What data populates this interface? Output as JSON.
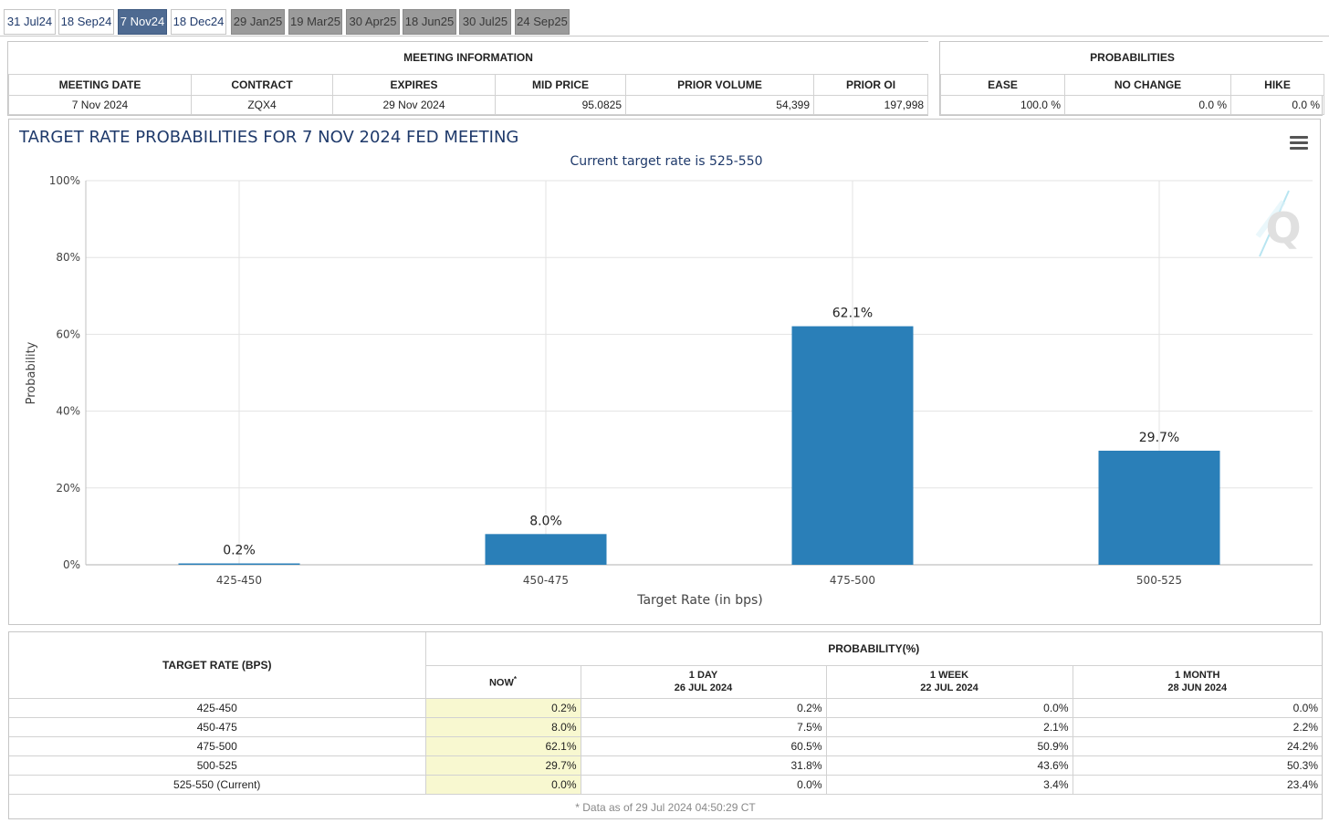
{
  "tabs": [
    {
      "label": "31 Jul24",
      "state": "normal"
    },
    {
      "label": "18 Sep24",
      "state": "normal"
    },
    {
      "label": "7 Nov24",
      "state": "active"
    },
    {
      "label": "18 Dec24",
      "state": "normal"
    },
    {
      "label": "29 Jan25",
      "state": "inactive"
    },
    {
      "label": "19 Mar25",
      "state": "inactive"
    },
    {
      "label": "30 Apr25",
      "state": "inactive"
    },
    {
      "label": "18 Jun25",
      "state": "inactive"
    },
    {
      "label": "30 Jul25",
      "state": "inactive"
    },
    {
      "label": "24 Sep25",
      "state": "inactive"
    }
  ],
  "meeting_info": {
    "title": "MEETING INFORMATION",
    "headers": [
      "MEETING DATE",
      "CONTRACT",
      "EXPIRES",
      "MID PRICE",
      "PRIOR VOLUME",
      "PRIOR OI"
    ],
    "values": [
      "7 Nov 2024",
      "ZQX4",
      "29 Nov 2024",
      "95.0825",
      "54,399",
      "197,998"
    ]
  },
  "probabilities": {
    "title": "PROBABILITIES",
    "headers": [
      "EASE",
      "NO CHANGE",
      "HIKE"
    ],
    "values": [
      "100.0 %",
      "0.0 %",
      "0.0 %"
    ]
  },
  "chart_data": {
    "type": "bar",
    "title": "TARGET RATE PROBABILITIES FOR 7 NOV 2024 FED MEETING",
    "subtitle": "Current target rate is 525-550",
    "xlabel": "Target Rate (in bps)",
    "ylabel": "Probability",
    "categories": [
      "425-450",
      "450-475",
      "475-500",
      "500-525"
    ],
    "values": [
      0.2,
      8.0,
      62.1,
      29.7
    ],
    "data_labels": [
      "0.2%",
      "8.0%",
      "62.1%",
      "29.7%"
    ],
    "ylim": [
      0,
      100
    ],
    "yticks": [
      "0%",
      "20%",
      "40%",
      "60%",
      "80%",
      "100%"
    ],
    "grid": true,
    "bar_color": "#2a7fb8"
  },
  "prob_table": {
    "col_target": "TARGET RATE (BPS)",
    "col_prob": "PROBABILITY(%)",
    "now": {
      "label": "NOW",
      "mark": "*"
    },
    "day": {
      "line1": "1 DAY",
      "line2": "26 JUL 2024"
    },
    "week": {
      "line1": "1 WEEK",
      "line2": "22 JUL 2024"
    },
    "month": {
      "line1": "1 MONTH",
      "line2": "28 JUN 2024"
    },
    "rows": [
      [
        "425-450",
        "0.2%",
        "0.2%",
        "0.0%",
        "0.0%"
      ],
      [
        "450-475",
        "8.0%",
        "7.5%",
        "2.1%",
        "2.2%"
      ],
      [
        "475-500",
        "62.1%",
        "60.5%",
        "50.9%",
        "24.2%"
      ],
      [
        "500-525",
        "29.7%",
        "31.8%",
        "43.6%",
        "50.3%"
      ],
      [
        "525-550 (Current)",
        "0.0%",
        "0.0%",
        "3.4%",
        "23.4%"
      ]
    ],
    "footnote": "* Data as of 29 Jul 2024 04:50:29 CT"
  },
  "colors": {
    "active_tab": "#4e6a91",
    "inactive_tab": "#9b9b9b",
    "now_column": "#f8f8d0",
    "title": "#1f3a6b"
  }
}
